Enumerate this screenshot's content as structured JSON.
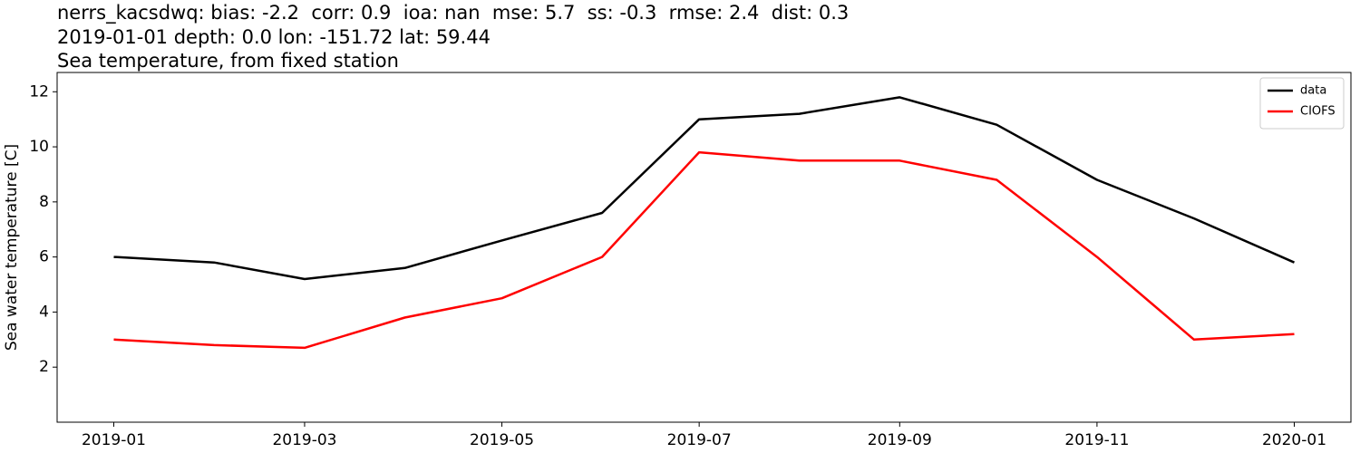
{
  "chart_data": {
    "type": "line",
    "title": "nerrs_kacsdwq: bias: -2.2  corr: 0.9  ioa: nan  mse: 5.7  ss: -0.3  rmse: 2.4  dist: 0.3",
    "subtitle": "2019-01-01 depth: 0.0 lon: -151.72 lat: 59.44",
    "description": "Sea temperature, from fixed station",
    "y_label": "Sea water temperature [C]",
    "x": [
      "2019-01",
      "2019-02",
      "2019-03",
      "2019-04",
      "2019-05",
      "2019-06",
      "2019-07",
      "2019-08",
      "2019-09",
      "2019-10",
      "2019-11",
      "2019-12",
      "2020-01"
    ],
    "series": [
      {
        "name": "data",
        "color": "#000000",
        "values": [
          6.0,
          5.8,
          5.2,
          5.6,
          6.6,
          7.6,
          11.0,
          11.2,
          11.8,
          10.8,
          8.8,
          7.4,
          5.8
        ]
      },
      {
        "name": "CIOFS",
        "color": "#ff0000",
        "values": [
          3.0,
          2.8,
          2.7,
          3.8,
          4.5,
          6.0,
          9.8,
          9.5,
          9.5,
          8.8,
          6.0,
          3.0,
          3.2
        ]
      }
    ],
    "ylim": [
      0,
      12.7
    ],
    "yticks": [
      2,
      4,
      6,
      8,
      10,
      12
    ],
    "xticks": [
      "2019-01",
      "2019-03",
      "2019-05",
      "2019-07",
      "2019-09",
      "2019-11",
      "2020-01"
    ],
    "legend": "upper right"
  }
}
